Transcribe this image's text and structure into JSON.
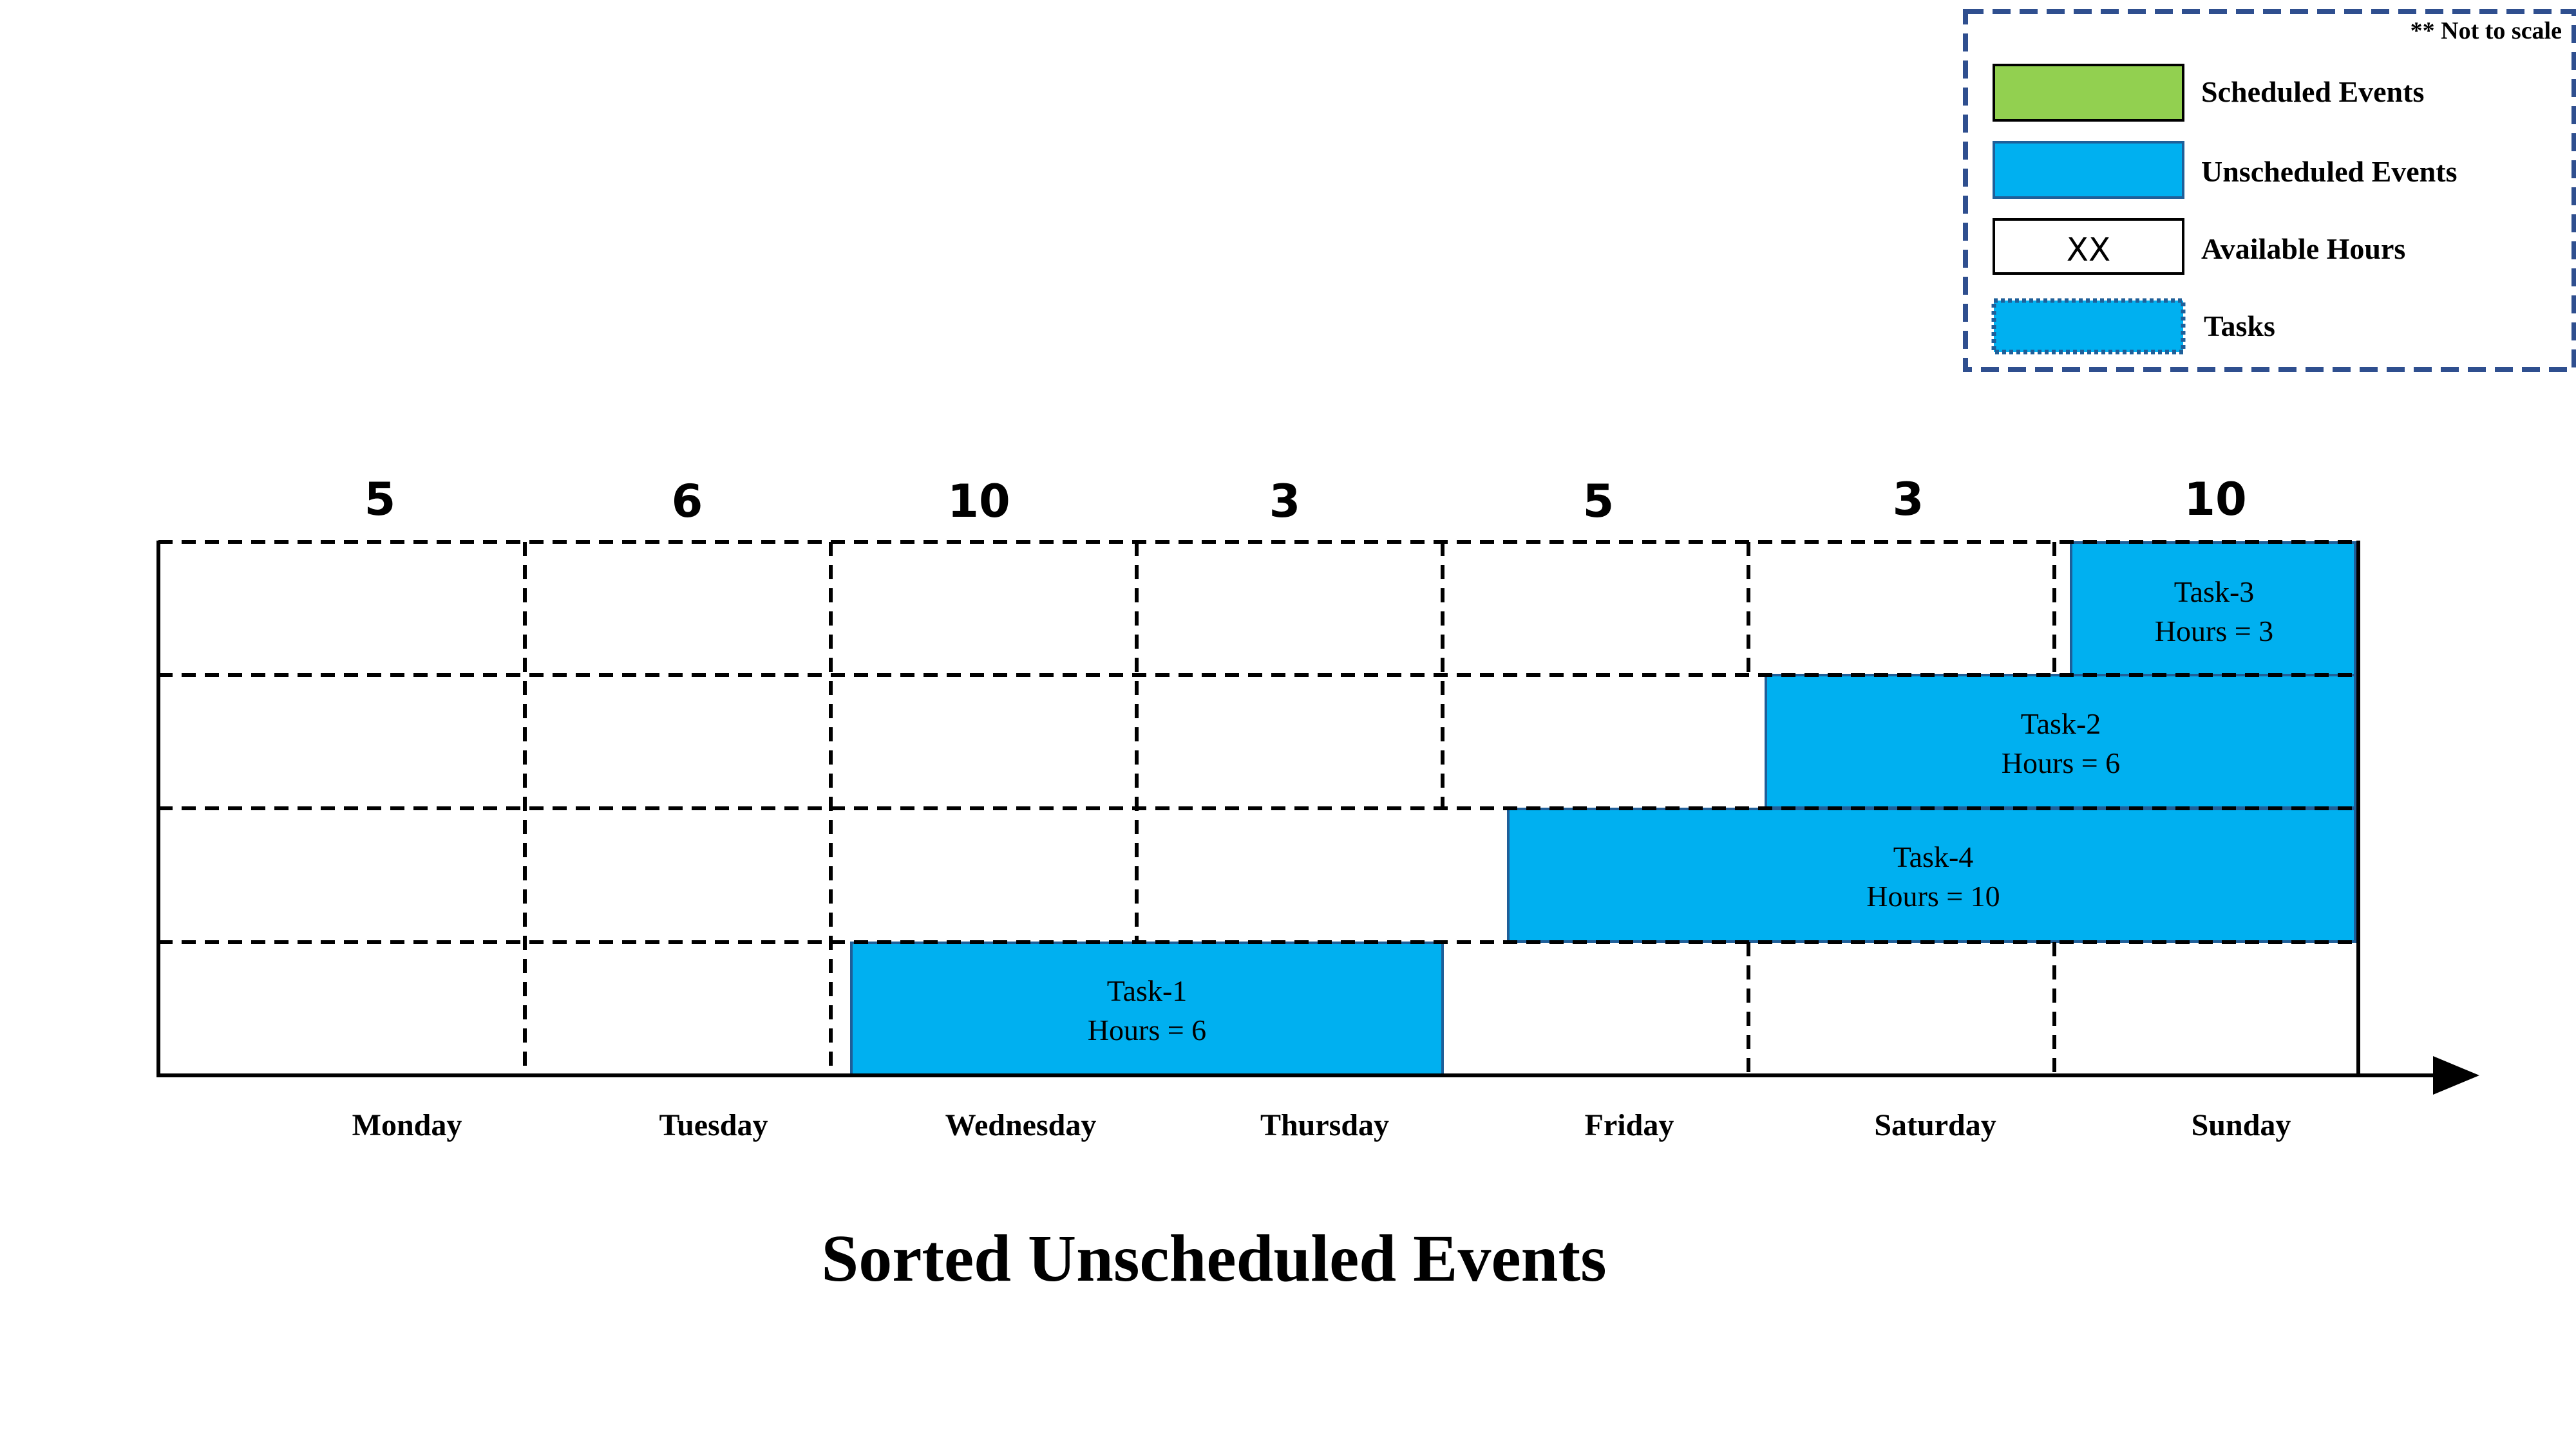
{
  "colors": {
    "scheduled": "#92d050",
    "unscheduled": "#00b0f0",
    "legend_border": "#2f4f8f",
    "task_border": "#1f5f99",
    "line": "#000000"
  },
  "legend": {
    "note": "** Not to scale",
    "items": [
      {
        "label": "Scheduled Events",
        "swatch": "scheduled",
        "swatch_text": ""
      },
      {
        "label": "Unscheduled Events",
        "swatch": "unscheduled",
        "swatch_text": ""
      },
      {
        "label": "Available Hours",
        "swatch": "available",
        "swatch_text": "XX"
      },
      {
        "label": "Tasks",
        "swatch": "task",
        "swatch_text": ""
      }
    ]
  },
  "days": [
    {
      "name": "Monday",
      "available_hours": "5"
    },
    {
      "name": "Tuesday",
      "available_hours": "6"
    },
    {
      "name": "Wednesday",
      "available_hours": "10"
    },
    {
      "name": "Thursday",
      "available_hours": "3"
    },
    {
      "name": "Friday",
      "available_hours": "5"
    },
    {
      "name": "Saturday",
      "available_hours": "3"
    },
    {
      "name": "Sunday",
      "available_hours": "10"
    }
  ],
  "tasks": [
    {
      "name": "Task-3",
      "hours_label": "Hours = 3"
    },
    {
      "name": "Task-2",
      "hours_label": "Hours = 6"
    },
    {
      "name": "Task-4",
      "hours_label": "Hours = 10"
    },
    {
      "name": "Task-1",
      "hours_label": "Hours = 6"
    }
  ],
  "title": "Sorted Unscheduled Events"
}
